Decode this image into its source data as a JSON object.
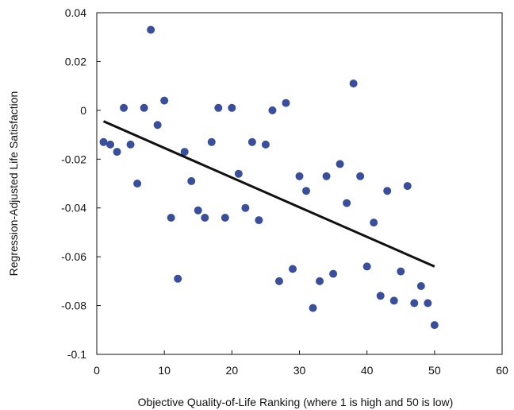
{
  "chart_data": {
    "type": "scatter",
    "xlabel": "Objective Quality-of-Life Ranking (where 1 is high and 50 is low)",
    "ylabel": "Regression-Adjusted Life Satisfaction",
    "xlim": [
      0,
      60
    ],
    "ylim": [
      -0.1,
      0.04
    ],
    "x_ticks": [
      0,
      10,
      20,
      30,
      40,
      50,
      60
    ],
    "y_ticks": [
      0.04,
      0.02,
      0,
      -0.02,
      -0.04,
      -0.06,
      -0.08,
      -0.1
    ],
    "x_tick_labels": [
      "0",
      "10",
      "20",
      "30",
      "40",
      "50",
      "60"
    ],
    "y_tick_labels": [
      "0.04",
      "0.02",
      "0",
      "-0.02",
      "-0.04",
      "-0.06",
      "-0.08",
      "-0.1"
    ],
    "grid": false,
    "marker_color": "#3a4f9c",
    "line_color": "#111111",
    "points": [
      {
        "x": 1,
        "y": -0.013
      },
      {
        "x": 2,
        "y": -0.014
      },
      {
        "x": 3,
        "y": -0.017
      },
      {
        "x": 4,
        "y": 0.001
      },
      {
        "x": 5,
        "y": -0.014
      },
      {
        "x": 6,
        "y": -0.03
      },
      {
        "x": 7,
        "y": 0.001
      },
      {
        "x": 8,
        "y": 0.033
      },
      {
        "x": 9,
        "y": -0.006
      },
      {
        "x": 10,
        "y": 0.004
      },
      {
        "x": 11,
        "y": -0.044
      },
      {
        "x": 12,
        "y": -0.069
      },
      {
        "x": 13,
        "y": -0.017
      },
      {
        "x": 14,
        "y": -0.029
      },
      {
        "x": 15,
        "y": -0.041
      },
      {
        "x": 16,
        "y": -0.044
      },
      {
        "x": 17,
        "y": -0.013
      },
      {
        "x": 18,
        "y": 0.001
      },
      {
        "x": 19,
        "y": -0.044
      },
      {
        "x": 20,
        "y": 0.001
      },
      {
        "x": 21,
        "y": -0.026
      },
      {
        "x": 22,
        "y": -0.04
      },
      {
        "x": 23,
        "y": -0.013
      },
      {
        "x": 24,
        "y": -0.045
      },
      {
        "x": 25,
        "y": -0.014
      },
      {
        "x": 26,
        "y": 0.0
      },
      {
        "x": 27,
        "y": -0.07
      },
      {
        "x": 28,
        "y": 0.003
      },
      {
        "x": 29,
        "y": -0.065
      },
      {
        "x": 30,
        "y": -0.027
      },
      {
        "x": 31,
        "y": -0.033
      },
      {
        "x": 32,
        "y": -0.081
      },
      {
        "x": 33,
        "y": -0.07
      },
      {
        "x": 34,
        "y": -0.027
      },
      {
        "x": 35,
        "y": -0.067
      },
      {
        "x": 36,
        "y": -0.022
      },
      {
        "x": 37,
        "y": -0.038
      },
      {
        "x": 38,
        "y": 0.011
      },
      {
        "x": 39,
        "y": -0.027
      },
      {
        "x": 40,
        "y": -0.064
      },
      {
        "x": 41,
        "y": -0.046
      },
      {
        "x": 42,
        "y": -0.076
      },
      {
        "x": 43,
        "y": -0.033
      },
      {
        "x": 44,
        "y": -0.078
      },
      {
        "x": 45,
        "y": -0.066
      },
      {
        "x": 46,
        "y": -0.031
      },
      {
        "x": 47,
        "y": -0.079
      },
      {
        "x": 48,
        "y": -0.072
      },
      {
        "x": 49,
        "y": -0.079
      },
      {
        "x": 50,
        "y": -0.088
      }
    ],
    "trend_line": {
      "start": {
        "x": 1,
        "y": -0.0045
      },
      "end": {
        "x": 50,
        "y": -0.064
      }
    }
  }
}
